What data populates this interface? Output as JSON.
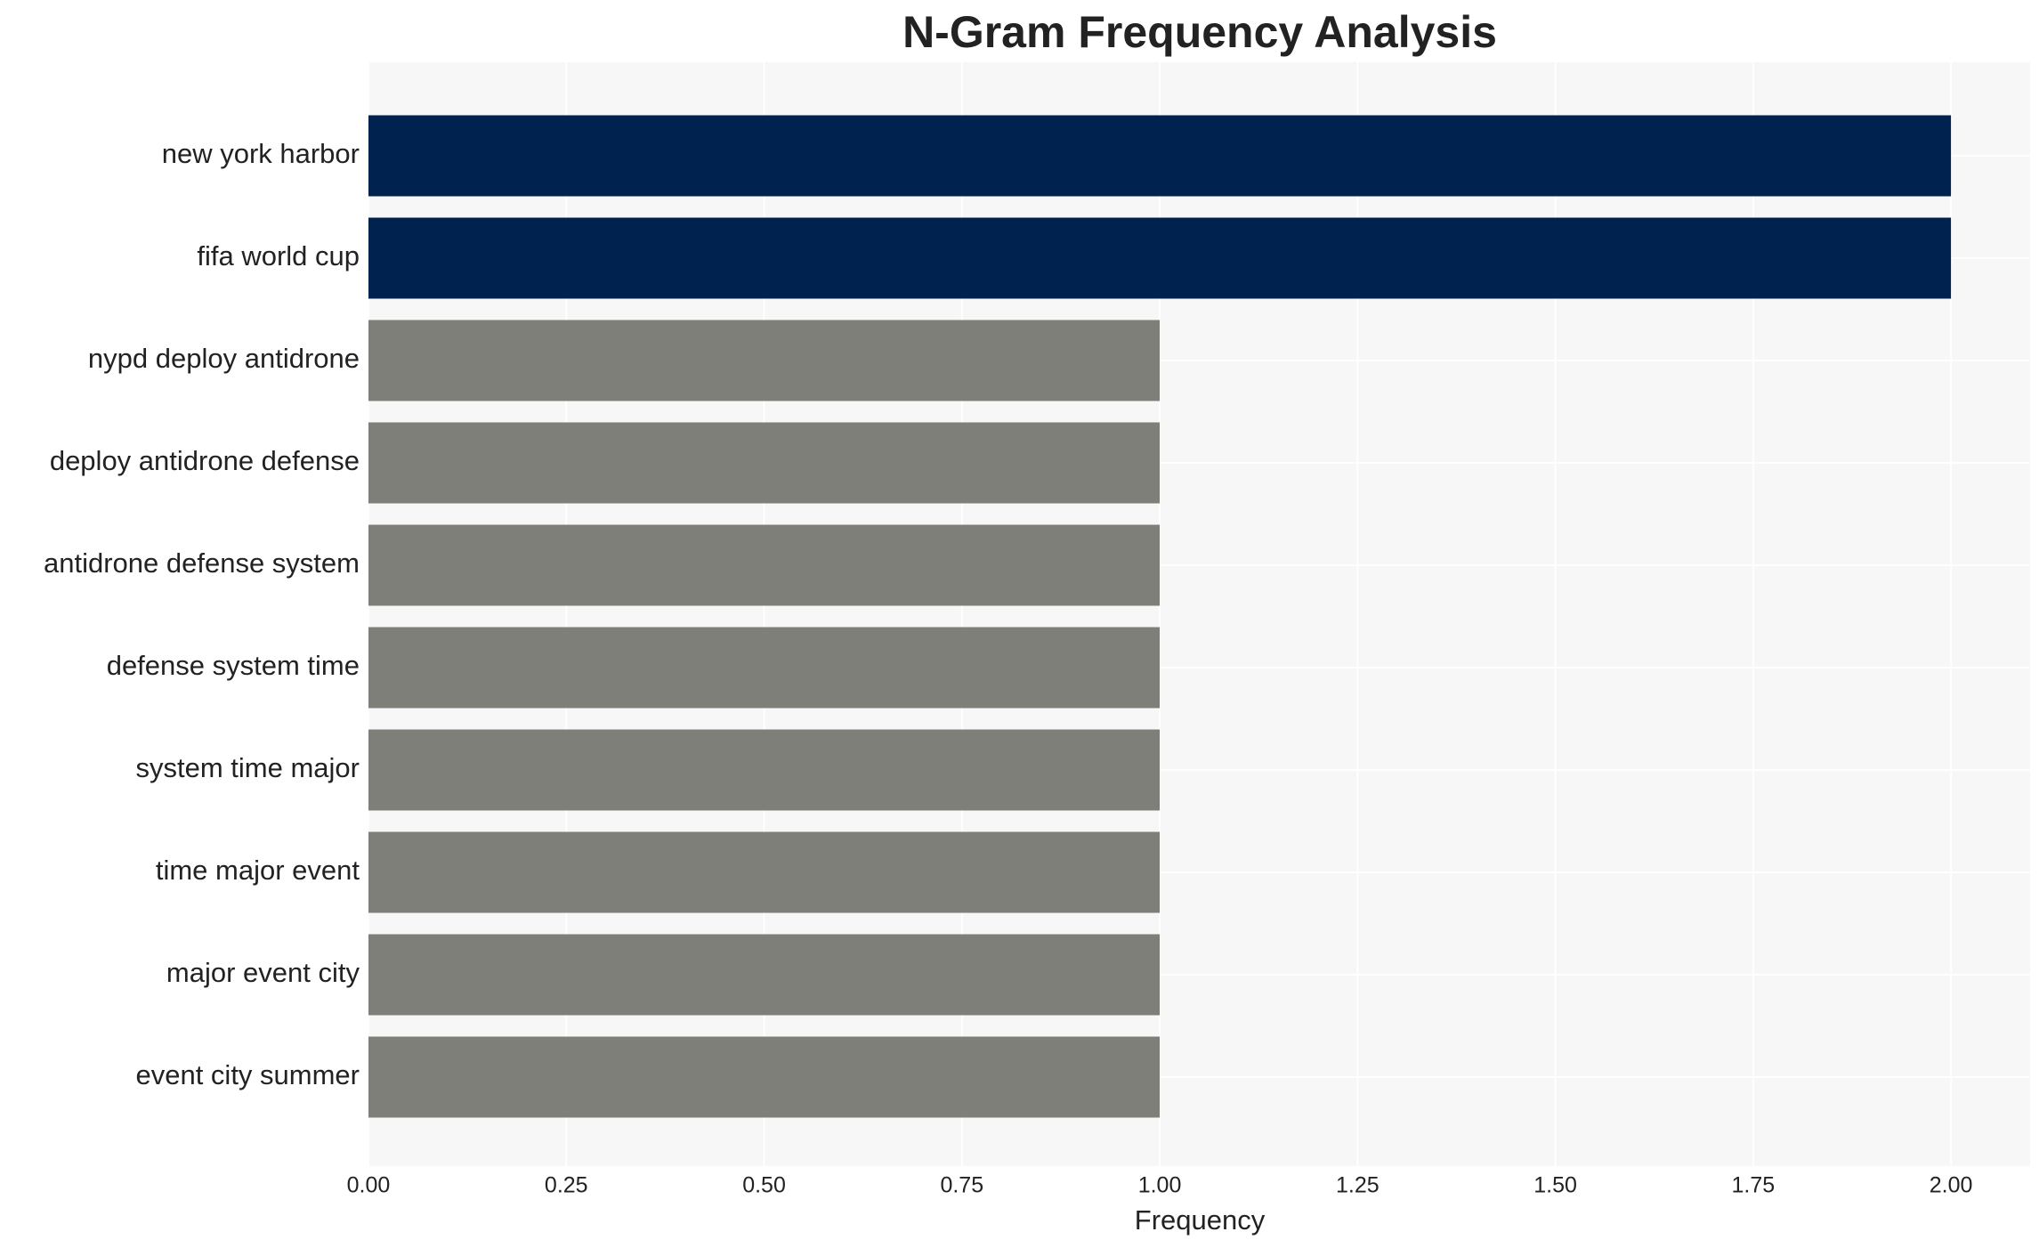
{
  "chart_data": {
    "type": "barh",
    "title": "N-Gram Frequency Analysis",
    "x_label": "Frequency",
    "categories": [
      "new york harbor",
      "fifa world cup",
      "nypd deploy antidrone",
      "deploy antidrone defense",
      "antidrone defense system",
      "defense system time",
      "system time major",
      "time major event",
      "major event city",
      "event city summer"
    ],
    "values": [
      2,
      2,
      1,
      1,
      1,
      1,
      1,
      1,
      1,
      1
    ],
    "colors": [
      "#00224e",
      "#00224e",
      "#7f7f7a",
      "#7f7f7a",
      "#7f7f7a",
      "#7f7f7a",
      "#7f7f7a",
      "#7f7f7a",
      "#7f7f7a",
      "#7f7f7a"
    ],
    "xlim": [
      0,
      2.1
    ],
    "xticks": [
      {
        "value": 0,
        "label": "0.00"
      },
      {
        "value": 0.25,
        "label": "0.25"
      },
      {
        "value": 0.5,
        "label": "0.50"
      },
      {
        "value": 0.75,
        "label": "0.75"
      },
      {
        "value": 1,
        "label": "1.00"
      },
      {
        "value": 1.25,
        "label": "1.25"
      },
      {
        "value": 1.5,
        "label": "1.50"
      },
      {
        "value": 1.75,
        "label": "1.75"
      },
      {
        "value": 2,
        "label": "2.00"
      }
    ],
    "grid": true
  }
}
